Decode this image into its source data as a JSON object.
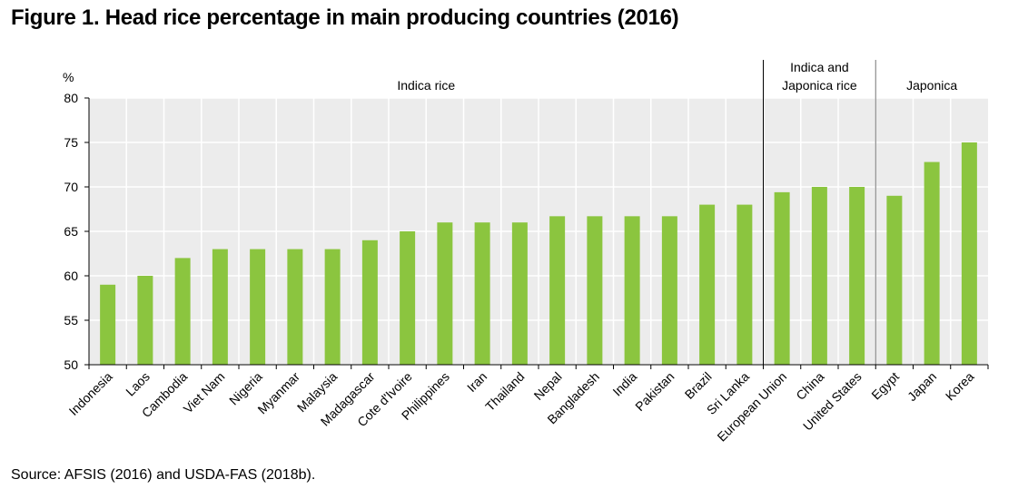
{
  "title": "Figure 1. Head rice percentage in main producing countries (2016)",
  "source": "Source: AFSIS (2016) and USDA-FAS (2018b).",
  "colors": {
    "bar": "#8bc53f",
    "plot_bg": "#ececec",
    "grid": "#ffffff"
  },
  "chart_data": {
    "type": "bar",
    "title": "Figure 1. Head rice percentage in main producing countries (2016)",
    "ylabel": "%",
    "xlabel": "",
    "ylim": [
      50,
      80
    ],
    "yticks": [
      "50",
      "55",
      "60",
      "65",
      "70",
      "75",
      "80"
    ],
    "grid": true,
    "categories": [
      "Indonesia",
      "Laos",
      "Cambodia",
      "Viet Nam",
      "Nigeria",
      "Myanmar",
      "Malaysia",
      "Madagascar",
      "Cote d'Ivoire",
      "Philippines",
      "Iran",
      "Thailand",
      "Nepal",
      "Bangladesh",
      "India",
      "Pakistan",
      "Brazil",
      "Sri Lanka",
      "European Union",
      "China",
      "United States",
      "Egypt",
      "Japan",
      "Korea"
    ],
    "values": [
      59,
      60,
      62,
      63,
      63,
      63,
      63,
      64,
      65,
      66,
      66,
      66,
      66.7,
      66.7,
      66.7,
      66.7,
      68,
      68,
      69.4,
      70,
      70,
      69,
      72.8,
      75
    ],
    "groups": [
      {
        "label": "Indica rice",
        "start": 0,
        "end": 17
      },
      {
        "label_line1": "Indica and",
        "label_line2": "Japonica rice",
        "start": 18,
        "end": 20
      },
      {
        "label": "Japonica",
        "start": 21,
        "end": 23
      }
    ]
  }
}
